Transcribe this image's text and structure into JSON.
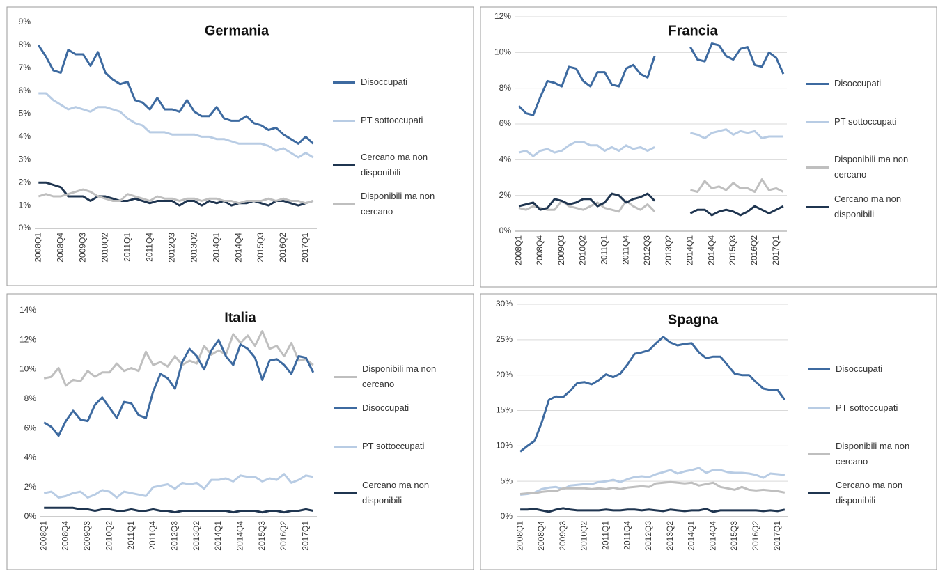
{
  "chart_data": [
    {
      "type": "line",
      "title": "Germania",
      "categories": [
        "2008Q1",
        null,
        null,
        "2008Q4",
        null,
        null,
        "2009Q3",
        null,
        null,
        "2010Q2",
        null,
        null,
        "2011Q1",
        null,
        null,
        "2011Q4",
        null,
        null,
        "2012Q3",
        null,
        null,
        "2013Q2",
        null,
        null,
        "2014Q1",
        null,
        null,
        "2014Q4",
        null,
        null,
        "2015Q3",
        null,
        null,
        "2016Q2",
        null,
        null,
        "2017Q1",
        null
      ],
      "series": [
        {
          "name": "Disoccupati",
          "color": "#3d6aa0",
          "values": [
            8.0,
            7.5,
            6.9,
            6.8,
            7.8,
            7.6,
            7.6,
            7.1,
            7.7,
            6.8,
            6.5,
            6.3,
            6.4,
            5.6,
            5.5,
            5.2,
            5.7,
            5.2,
            5.2,
            5.1,
            5.6,
            5.1,
            4.9,
            4.9,
            5.3,
            4.8,
            4.7,
            4.7,
            4.9,
            4.6,
            4.5,
            4.3,
            4.4,
            4.1,
            3.9,
            3.7,
            4.0,
            3.7
          ]
        },
        {
          "name": "PT sottoccupati",
          "color": "#b8cce4",
          "values": [
            5.9,
            5.9,
            5.6,
            5.4,
            5.2,
            5.3,
            5.2,
            5.1,
            5.3,
            5.3,
            5.2,
            5.1,
            4.8,
            4.6,
            4.5,
            4.2,
            4.2,
            4.2,
            4.1,
            4.1,
            4.1,
            4.1,
            4.0,
            4.0,
            3.9,
            3.9,
            3.8,
            3.7,
            3.7,
            3.7,
            3.7,
            3.6,
            3.4,
            3.5,
            3.3,
            3.1,
            3.3,
            3.1
          ]
        },
        {
          "name": "Cercano ma non disponibili",
          "color": "#1f3550",
          "values": [
            2.0,
            2.0,
            1.9,
            1.8,
            1.4,
            1.4,
            1.4,
            1.2,
            1.4,
            1.4,
            1.3,
            1.2,
            1.2,
            1.3,
            1.2,
            1.1,
            1.2,
            1.2,
            1.2,
            1.0,
            1.2,
            1.2,
            1.0,
            1.2,
            1.1,
            1.2,
            1.0,
            1.1,
            1.1,
            1.2,
            1.1,
            1.0,
            1.2,
            1.2,
            1.1,
            1.0,
            1.1,
            1.2
          ]
        },
        {
          "name": "Disponibili ma non cercano",
          "color": "#bfbfbf",
          "values": [
            1.4,
            1.5,
            1.4,
            1.4,
            1.5,
            1.6,
            1.7,
            1.6,
            1.4,
            1.3,
            1.2,
            1.2,
            1.5,
            1.4,
            1.3,
            1.2,
            1.4,
            1.3,
            1.3,
            1.2,
            1.3,
            1.3,
            1.2,
            1.3,
            1.3,
            1.2,
            1.2,
            1.1,
            1.2,
            1.2,
            1.2,
            1.3,
            1.2,
            1.3,
            1.2,
            1.2,
            1.1,
            1.2
          ]
        }
      ],
      "ylim": [
        0,
        9
      ],
      "yticks": [
        {
          "value": 0,
          "label": "0%"
        },
        {
          "value": 1,
          "label": "1%"
        },
        {
          "value": 2,
          "label": "2%"
        },
        {
          "value": 3,
          "label": "3%"
        },
        {
          "value": 4,
          "label": "4%"
        },
        {
          "value": 5,
          "label": "5%"
        },
        {
          "value": 6,
          "label": "6%"
        },
        {
          "value": 7,
          "label": "7%"
        },
        {
          "value": 8,
          "label": "8%"
        },
        {
          "value": 9,
          "label": "9%"
        }
      ],
      "grid": false
    },
    {
      "type": "line",
      "title": "Francia",
      "categories": [
        "2008Q1",
        null,
        null,
        "2008Q4",
        null,
        null,
        "2009Q3",
        null,
        null,
        "2010Q2",
        null,
        null,
        "2011Q1",
        null,
        null,
        "2011Q4",
        null,
        null,
        "2012Q3",
        null,
        null,
        "2013Q2",
        null,
        null,
        "2014Q1",
        null,
        null,
        "2014Q4",
        null,
        null,
        "2015Q3",
        null,
        null,
        "2016Q2",
        null,
        null,
        "2017Q1",
        null
      ],
      "series": [
        {
          "name": "Disoccupati",
          "color": "#3d6aa0",
          "values": [
            7.0,
            6.6,
            6.5,
            7.5,
            8.4,
            8.3,
            8.1,
            9.2,
            9.1,
            8.4,
            8.1,
            8.9,
            8.9,
            8.2,
            8.1,
            9.1,
            9.3,
            8.8,
            8.6,
            9.8,
            null,
            null,
            null,
            null,
            10.3,
            9.6,
            9.5,
            10.5,
            10.4,
            9.8,
            9.6,
            10.2,
            10.3,
            9.3,
            9.2,
            10.0,
            9.7,
            8.8
          ]
        },
        {
          "name": "PT sottoccupati",
          "color": "#b8cce4",
          "values": [
            4.4,
            4.5,
            4.2,
            4.5,
            4.6,
            4.4,
            4.5,
            4.8,
            5.0,
            5.0,
            4.8,
            4.8,
            4.5,
            4.7,
            4.5,
            4.8,
            4.6,
            4.7,
            4.5,
            4.7,
            null,
            null,
            null,
            null,
            5.5,
            5.4,
            5.2,
            5.5,
            5.6,
            5.7,
            5.4,
            5.6,
            5.5,
            5.6,
            5.2,
            5.3,
            5.3,
            5.3
          ]
        },
        {
          "name": "Disponibili ma non cercano",
          "color": "#bfbfbf",
          "values": [
            1.3,
            1.2,
            1.4,
            1.3,
            1.2,
            1.2,
            1.7,
            1.4,
            1.3,
            1.2,
            1.4,
            1.6,
            1.3,
            1.2,
            1.1,
            1.7,
            1.4,
            1.2,
            1.5,
            1.1,
            null,
            null,
            null,
            null,
            2.3,
            2.2,
            2.8,
            2.4,
            2.5,
            2.3,
            2.7,
            2.4,
            2.4,
            2.2,
            2.9,
            2.3,
            2.4,
            2.2
          ]
        },
        {
          "name": "Cercano ma non disponibili",
          "color": "#1f3550",
          "values": [
            1.4,
            1.5,
            1.6,
            1.2,
            1.3,
            1.8,
            1.7,
            1.5,
            1.6,
            1.8,
            1.8,
            1.4,
            1.6,
            2.1,
            2.0,
            1.6,
            1.8,
            1.9,
            2.1,
            1.7,
            null,
            null,
            null,
            null,
            1.0,
            1.2,
            1.2,
            0.9,
            1.1,
            1.2,
            1.1,
            0.9,
            1.1,
            1.4,
            1.2,
            1.0,
            1.2,
            1.4
          ]
        }
      ],
      "ylim": [
        0,
        12
      ],
      "yticks": [
        {
          "value": 0,
          "label": "0%"
        },
        {
          "value": 2,
          "label": "2%"
        },
        {
          "value": 4,
          "label": "4%"
        },
        {
          "value": 6,
          "label": "6%"
        },
        {
          "value": 8,
          "label": "8%"
        },
        {
          "value": 10,
          "label": "10%"
        },
        {
          "value": 12,
          "label": "12%"
        }
      ],
      "grid": true
    },
    {
      "type": "line",
      "title": "Italia",
      "categories": [
        "2008Q1",
        null,
        null,
        "2008Q4",
        null,
        null,
        "2009Q3",
        null,
        null,
        "2010Q2",
        null,
        null,
        "2011Q1",
        null,
        null,
        "2011Q4",
        null,
        null,
        "2012Q3",
        null,
        null,
        "2013Q2",
        null,
        null,
        "2014Q1",
        null,
        null,
        "2014Q4",
        null,
        null,
        "2015Q3",
        null,
        null,
        "2016Q2",
        null,
        null,
        "2017Q1",
        null
      ],
      "series": [
        {
          "name": "Disponibili ma non cercano",
          "color": "#bfbfbf",
          "values": [
            9.4,
            9.5,
            10.1,
            8.9,
            9.3,
            9.2,
            9.9,
            9.5,
            9.8,
            9.8,
            10.4,
            9.9,
            10.1,
            9.9,
            11.2,
            10.3,
            10.5,
            10.2,
            10.9,
            10.3,
            10.6,
            10.4,
            11.6,
            11.0,
            11.3,
            11.0,
            12.4,
            11.8,
            12.3,
            11.6,
            12.6,
            11.4,
            11.6,
            10.9,
            11.8,
            10.6,
            10.7,
            10.3
          ]
        },
        {
          "name": "Disoccupati",
          "color": "#3d6aa0",
          "values": [
            6.4,
            6.1,
            5.5,
            6.5,
            7.2,
            6.6,
            6.5,
            7.6,
            8.1,
            7.4,
            6.7,
            7.8,
            7.7,
            6.9,
            6.7,
            8.5,
            9.7,
            9.4,
            8.7,
            10.5,
            11.4,
            10.9,
            10.0,
            11.3,
            12.0,
            10.9,
            10.3,
            11.7,
            11.4,
            10.8,
            9.3,
            10.6,
            10.7,
            10.3,
            9.7,
            10.9,
            10.8,
            9.8
          ]
        },
        {
          "name": "PT sottoccupati",
          "color": "#b8cce4",
          "values": [
            1.6,
            1.7,
            1.3,
            1.4,
            1.6,
            1.7,
            1.3,
            1.5,
            1.8,
            1.7,
            1.3,
            1.7,
            1.6,
            1.5,
            1.4,
            2.0,
            2.1,
            2.2,
            1.9,
            2.3,
            2.2,
            2.3,
            1.9,
            2.5,
            2.5,
            2.6,
            2.4,
            2.8,
            2.7,
            2.7,
            2.4,
            2.6,
            2.5,
            2.9,
            2.3,
            2.5,
            2.8,
            2.7
          ]
        },
        {
          "name": "Cercano ma non disponibili",
          "color": "#1f3550",
          "values": [
            0.6,
            0.6,
            0.6,
            0.6,
            0.6,
            0.5,
            0.5,
            0.4,
            0.5,
            0.5,
            0.4,
            0.4,
            0.5,
            0.4,
            0.4,
            0.5,
            0.4,
            0.4,
            0.3,
            0.4,
            0.4,
            0.4,
            0.4,
            0.4,
            0.4,
            0.4,
            0.3,
            0.4,
            0.4,
            0.4,
            0.3,
            0.4,
            0.4,
            0.3,
            0.4,
            0.4,
            0.5,
            0.4
          ]
        }
      ],
      "ylim": [
        0,
        14
      ],
      "yticks": [
        {
          "value": 0,
          "label": "0%"
        },
        {
          "value": 2,
          "label": "2%"
        },
        {
          "value": 4,
          "label": "4%"
        },
        {
          "value": 6,
          "label": "6%"
        },
        {
          "value": 8,
          "label": "8%"
        },
        {
          "value": 10,
          "label": "10%"
        },
        {
          "value": 12,
          "label": "12%"
        },
        {
          "value": 14,
          "label": "14%"
        }
      ],
      "grid": false
    },
    {
      "type": "line",
      "title": "Spagna",
      "categories": [
        "2008Q1",
        null,
        null,
        "2008Q4",
        null,
        null,
        "2009Q3",
        null,
        null,
        "2010Q2",
        null,
        null,
        "2011Q1",
        null,
        null,
        "2011Q4",
        null,
        null,
        "2012Q3",
        null,
        null,
        "2013Q2",
        null,
        null,
        "2014Q1",
        null,
        null,
        "2014Q4",
        null,
        null,
        "2015Q3",
        null,
        null,
        "2016Q2",
        null,
        null,
        "2017Q1",
        null
      ],
      "series": [
        {
          "name": "Disoccupati",
          "color": "#3d6aa0",
          "values": [
            9.2,
            10.0,
            10.7,
            13.3,
            16.5,
            17.0,
            16.9,
            17.8,
            18.9,
            19.0,
            18.7,
            19.3,
            20.1,
            19.7,
            20.2,
            21.5,
            23.0,
            23.2,
            23.5,
            24.5,
            25.4,
            24.6,
            24.2,
            24.4,
            24.5,
            23.2,
            22.4,
            22.6,
            22.6,
            21.4,
            20.2,
            20.0,
            20.0,
            19.0,
            18.1,
            17.9,
            17.9,
            16.5
          ]
        },
        {
          "name": "PT sottoccupati",
          "color": "#b8cce4",
          "values": [
            3.1,
            3.2,
            3.4,
            3.9,
            4.1,
            4.2,
            3.9,
            4.4,
            4.5,
            4.6,
            4.6,
            4.9,
            5.0,
            5.2,
            4.9,
            5.3,
            5.6,
            5.7,
            5.6,
            6.0,
            6.3,
            6.6,
            6.1,
            6.4,
            6.6,
            6.9,
            6.2,
            6.6,
            6.6,
            6.3,
            6.2,
            6.2,
            6.1,
            5.9,
            5.5,
            6.1,
            6.0,
            5.9
          ]
        },
        {
          "name": "Disponibili ma non cercano",
          "color": "#bfbfbf",
          "values": [
            3.2,
            3.3,
            3.3,
            3.5,
            3.6,
            3.6,
            4.0,
            4.0,
            4.0,
            4.0,
            3.9,
            4.0,
            3.9,
            4.1,
            3.9,
            4.1,
            4.2,
            4.3,
            4.2,
            4.7,
            4.8,
            4.9,
            4.8,
            4.7,
            4.8,
            4.4,
            4.6,
            4.8,
            4.2,
            4.0,
            3.8,
            4.2,
            3.8,
            3.7,
            3.8,
            3.7,
            3.6,
            3.4
          ]
        },
        {
          "name": "Cercano ma non disponibili",
          "color": "#1f3550",
          "values": [
            1.0,
            1.0,
            1.1,
            0.9,
            0.7,
            1.0,
            1.2,
            1.0,
            0.9,
            0.9,
            0.9,
            0.9,
            1.0,
            0.9,
            0.9,
            1.0,
            1.0,
            0.9,
            1.0,
            0.9,
            0.8,
            1.0,
            0.9,
            0.8,
            0.9,
            0.9,
            1.1,
            0.7,
            0.9,
            0.9,
            0.9,
            0.9,
            0.9,
            0.9,
            0.8,
            0.9,
            0.8,
            1.0
          ]
        }
      ],
      "ylim": [
        0,
        30
      ],
      "yticks": [
        {
          "value": 0,
          "label": "0%"
        },
        {
          "value": 5,
          "label": "5%"
        },
        {
          "value": 10,
          "label": "10%"
        },
        {
          "value": 15,
          "label": "15%"
        },
        {
          "value": 20,
          "label": "20%"
        },
        {
          "value": 25,
          "label": "25%"
        },
        {
          "value": 30,
          "label": "30%"
        }
      ],
      "grid": true
    }
  ]
}
